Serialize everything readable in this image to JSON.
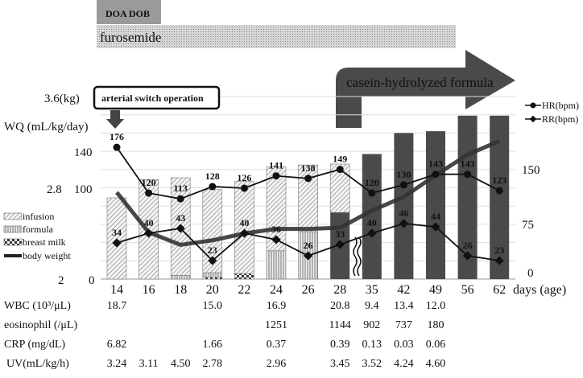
{
  "chart_data": {
    "type": "bar",
    "annotations": {
      "doa_dob": "DOA DOB",
      "furosemide": "furosemide",
      "casein": "casein-hydrolyzed formula",
      "surgery": "arterial switch operation"
    },
    "axes": {
      "weight_top": "3.6(kg)",
      "weight_mid": "2.8",
      "weight_bottom": "2",
      "wq_label": "WQ (mL/kg/day)",
      "wq_140": "140",
      "wq_100": "100",
      "wq_0": "0",
      "right_150": "150",
      "right_75": "75",
      "right_0": "0",
      "xlabel": "days (age)",
      "wq_range": [
        0,
        200
      ],
      "weight_range": [
        2,
        3.6
      ],
      "right_range": [
        0,
        250
      ],
      "x_axis_break_between": [
        "28",
        "35"
      ]
    },
    "categories": [
      "14",
      "16",
      "18",
      "20",
      "22",
      "24",
      "26",
      "28",
      "35",
      "42",
      "49",
      "56",
      "62"
    ],
    "bar_series": [
      {
        "name": "breast milk",
        "pattern": "checker",
        "values": [
          0,
          0,
          0,
          2,
          6,
          0,
          0,
          0,
          0,
          0,
          0,
          0,
          0
        ]
      },
      {
        "name": "formula",
        "pattern": "vertical-stripes",
        "values": [
          0,
          0,
          4,
          5,
          0,
          31,
          52,
          0,
          0,
          0,
          0,
          0,
          0
        ]
      },
      {
        "pattern": "dark-solid",
        "color": "#4a4a4a",
        "values": [
          0,
          0,
          0,
          0,
          0,
          0,
          0,
          73,
          137,
          160,
          162,
          179,
          179
        ]
      },
      {
        "name": "infusion",
        "pattern": "diagonal-hatch",
        "values": [
          89,
          109,
          107,
          91,
          101,
          92,
          73,
          53,
          0,
          0,
          0,
          0,
          0
        ]
      }
    ],
    "body_weight": {
      "name": "body weight",
      "unit": "kg",
      "values": [
        2.76,
        2.41,
        2.3,
        2.34,
        2.4,
        2.44,
        2.44,
        2.45,
        2.6,
        2.72,
        2.91,
        3.09,
        3.21
      ]
    },
    "hr": {
      "name": "HR(bpm)",
      "values": [
        176,
        120,
        113,
        128,
        126,
        141,
        138,
        149,
        120,
        130,
        143,
        143,
        123
      ]
    },
    "rr": {
      "name": "RR(bpm)",
      "values": [
        34,
        40,
        43,
        23,
        40,
        36,
        26,
        33,
        40,
        46,
        44,
        26,
        23
      ]
    },
    "legend": [
      "infusion",
      "formula",
      "breast milk",
      "body weight"
    ],
    "table": {
      "rows": [
        {
          "label": "WBC (10³/μL)",
          "values": [
            "18.7",
            "",
            "",
            "15.0",
            "",
            "16.9",
            "",
            "20.8",
            "9.4",
            "13.4",
            "12.0",
            "",
            ""
          ]
        },
        {
          "label": "eosinophil (/μL)",
          "values": [
            "",
            "",
            "",
            "",
            "",
            "1251",
            "",
            "1144",
            "902",
            "737",
            "180",
            "",
            ""
          ]
        },
        {
          "label": "CRP (mg/dL)",
          "values": [
            "6.82",
            "",
            "",
            "1.66",
            "",
            "0.37",
            "",
            "0.39",
            "0.13",
            "0.03",
            "0.06",
            "",
            ""
          ]
        },
        {
          "label": "UV(mL/kg/h)",
          "values": [
            "3.24",
            "3.11",
            "4.50",
            "2.78",
            "",
            "2.96",
            "",
            "3.45",
            "3.52",
            "4.24",
            "4.60",
            "",
            ""
          ]
        }
      ]
    }
  }
}
